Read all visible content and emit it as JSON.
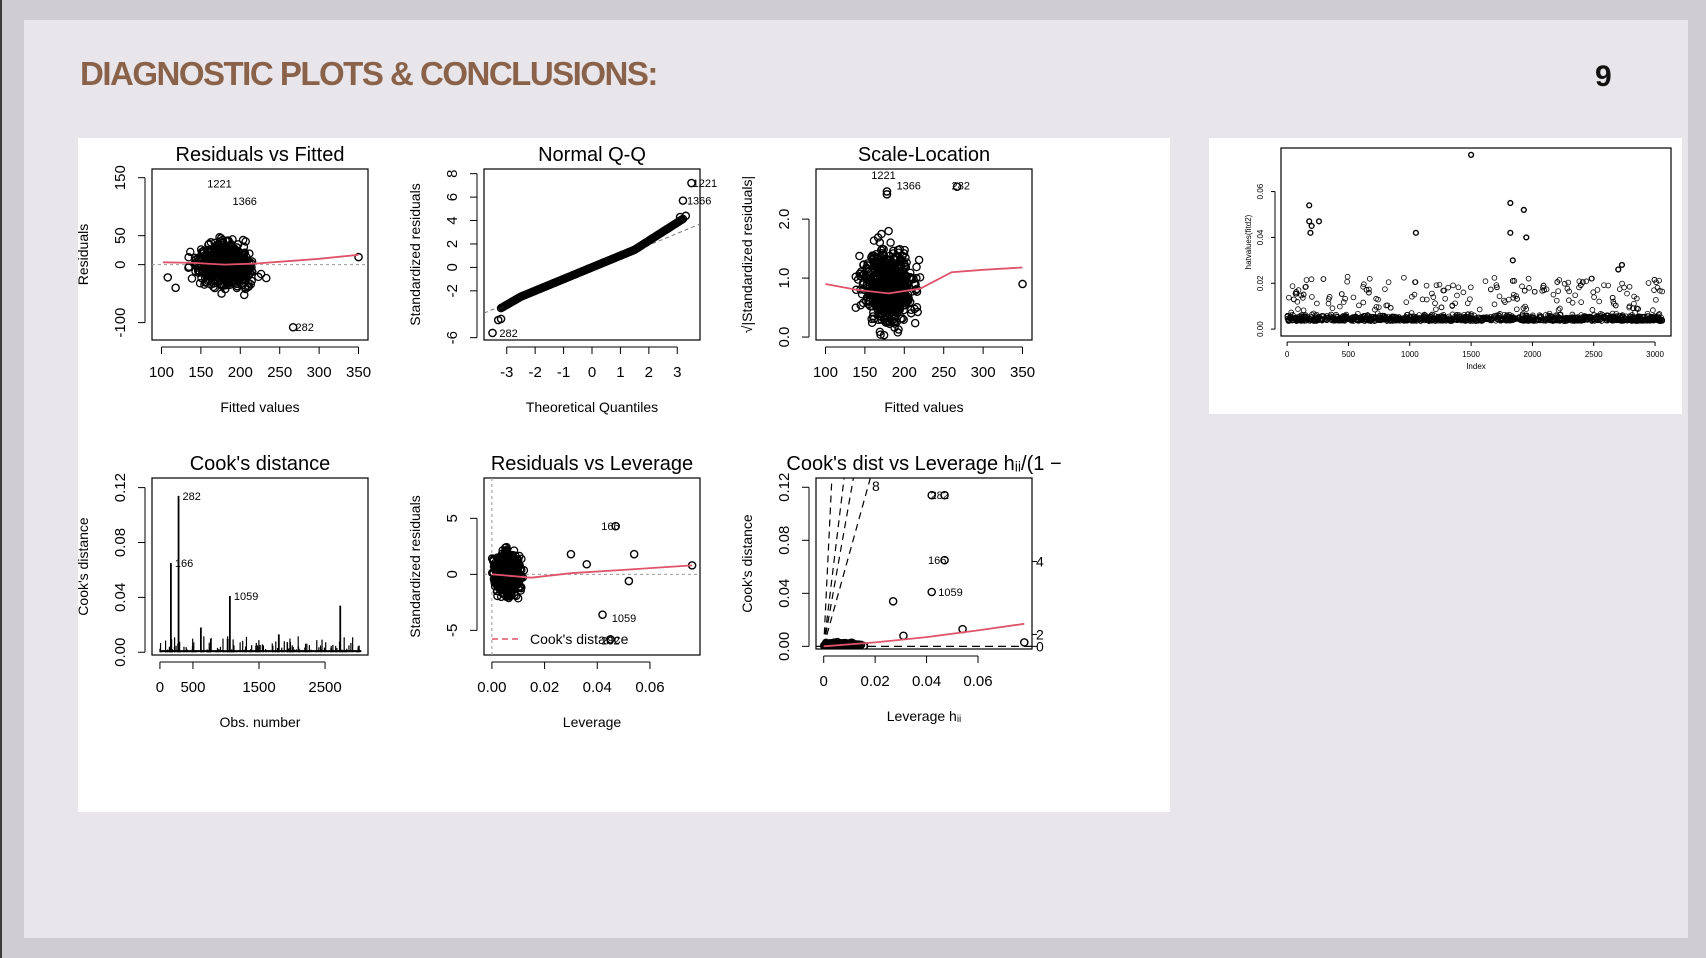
{
  "slide": {
    "title": "DIAGNOSTIC PLOTS & CONCLUSIONS:",
    "page_number": "9"
  },
  "colors": {
    "title": "#8a624a",
    "smoother": "#df536b",
    "points": "#000000"
  },
  "chart_data": [
    {
      "id": "resid-fitted",
      "type": "scatter",
      "title": "Residuals vs Fitted",
      "xlabel": "Fitted values",
      "ylabel": "Residuals",
      "xlim": [
        88,
        362
      ],
      "ylim": [
        -130,
        165
      ],
      "xticks": [
        "100",
        "150",
        "200",
        "250",
        "300",
        "350"
      ],
      "xtick_values": [
        100,
        150,
        200,
        250,
        300,
        350
      ],
      "yticks": [
        "-100",
        "0",
        "50",
        "150"
      ],
      "ytick_values": [
        -100,
        0,
        50,
        150
      ],
      "cloud": {
        "x_center": 180,
        "x_spread": 38,
        "y_spread": 28
      },
      "points": [
        {
          "x": 350,
          "y": 13
        },
        {
          "x": 267,
          "y": -108
        },
        {
          "x": 118,
          "y": -40
        },
        {
          "x": 108,
          "y": -22
        }
      ],
      "labels": [
        {
          "x": 153,
          "y": 140,
          "text": "1221"
        },
        {
          "x": 185,
          "y": 110,
          "text": "1366"
        },
        {
          "x": 265,
          "y": -108,
          "text": "282"
        }
      ],
      "smoother": [
        [
          102,
          4
        ],
        [
          140,
          3
        ],
        [
          180,
          0
        ],
        [
          220,
          2
        ],
        [
          260,
          6
        ],
        [
          300,
          10
        ],
        [
          350,
          17
        ]
      ],
      "reference_y": 0
    },
    {
      "id": "normal-qq",
      "type": "scatter",
      "title": "Normal Q-Q",
      "xlabel": "Theoretical Quantiles",
      "ylabel": "Standardized residuals",
      "xlim": [
        -3.8,
        3.8
      ],
      "ylim": [
        -6.2,
        8.4
      ],
      "xticks": [
        "-3",
        "-2",
        "-1",
        "0",
        "1",
        "2",
        "3"
      ],
      "xtick_values": [
        -3,
        -2,
        -1,
        0,
        1,
        2,
        3
      ],
      "yticks": [
        "-6",
        "-2",
        "0",
        "2",
        "4",
        "6",
        "8"
      ],
      "ytick_values": [
        -6,
        -2,
        0,
        2,
        4,
        6,
        8
      ],
      "points": [
        {
          "x": -3.5,
          "y": -5.6
        },
        {
          "x": -3.3,
          "y": -4.5
        },
        {
          "x": -3.2,
          "y": -4.4
        },
        {
          "x": 3.1,
          "y": 4.3
        },
        {
          "x": 3.3,
          "y": 4.4
        },
        {
          "x": 3.2,
          "y": 5.7
        },
        {
          "x": 3.5,
          "y": 7.2
        }
      ],
      "labels": [
        {
          "x": -3.4,
          "y": -5.6,
          "text": "282"
        },
        {
          "x": 3.2,
          "y": 5.7,
          "text": "1366"
        },
        {
          "x": 3.4,
          "y": 7.2,
          "text": "1221"
        }
      ],
      "reference_line": {
        "slope": 1.0,
        "intercept": -0.1
      }
    },
    {
      "id": "scale-location",
      "type": "scatter",
      "title": "Scale-Location",
      "xlabel": "Fitted values",
      "ylabel": "√|Standardized residuals|",
      "xlim": [
        88,
        362
      ],
      "ylim": [
        -0.05,
        2.85
      ],
      "xticks": [
        "100",
        "150",
        "200",
        "250",
        "300",
        "350"
      ],
      "xtick_values": [
        100,
        150,
        200,
        250,
        300,
        350
      ],
      "yticks": [
        "0.0",
        "1.0",
        "2.0"
      ],
      "ytick_values": [
        0,
        1,
        2
      ],
      "cloud": {
        "x_center": 180,
        "x_spread": 38,
        "y_spread": 0.5
      },
      "points": [
        {
          "x": 350,
          "y": 0.9
        },
        {
          "x": 267,
          "y": 2.55
        },
        {
          "x": 178,
          "y": 2.42
        },
        {
          "x": 178,
          "y": 2.47
        }
      ],
      "labels": [
        {
          "x": 153,
          "y": 2.75,
          "text": "1221"
        },
        {
          "x": 185,
          "y": 2.57,
          "text": "1366"
        },
        {
          "x": 255,
          "y": 2.57,
          "text": "282"
        }
      ],
      "smoother": [
        [
          100,
          0.9
        ],
        [
          140,
          0.8
        ],
        [
          180,
          0.74
        ],
        [
          220,
          0.82
        ],
        [
          260,
          1.1
        ],
        [
          300,
          1.14
        ],
        [
          350,
          1.18
        ]
      ]
    },
    {
      "id": "cooks-distance",
      "type": "bar",
      "title": "Cook's distance",
      "xlabel": "Obs. number",
      "ylabel": "Cook's distance",
      "xlim": [
        -120,
        3150
      ],
      "ylim": [
        -0.002,
        0.127
      ],
      "xticks": [
        "0",
        "500",
        "1500",
        "2500"
      ],
      "xtick_values": [
        0,
        500,
        1500,
        2500
      ],
      "yticks": [
        "0.00",
        "0.04",
        "0.08",
        "0.12"
      ],
      "ytick_values": [
        0,
        0.04,
        0.08,
        0.12
      ],
      "spikes": [
        {
          "x": 166,
          "y": 0.065
        },
        {
          "x": 282,
          "y": 0.114
        },
        {
          "x": 1059,
          "y": 0.041
        },
        {
          "x": 2730,
          "y": 0.034
        },
        {
          "x": 620,
          "y": 0.018
        },
        {
          "x": 1800,
          "y": 0.013
        }
      ],
      "labels": [
        {
          "x": 166,
          "y": 0.065,
          "text": "166"
        },
        {
          "x": 282,
          "y": 0.114,
          "text": "282"
        },
        {
          "x": 1059,
          "y": 0.041,
          "text": "1059"
        }
      ]
    },
    {
      "id": "resid-leverage",
      "type": "scatter",
      "title": "Residuals vs Leverage",
      "xlabel": "Leverage",
      "ylabel": "Standardized residuals",
      "xlim": [
        -0.003,
        0.079
      ],
      "ylim": [
        -7.2,
        8.6
      ],
      "xticks": [
        "0.00",
        "0.02",
        "0.04",
        "0.06"
      ],
      "xtick_values": [
        0,
        0.02,
        0.04,
        0.06
      ],
      "yticks": [
        "-5",
        "0",
        "5"
      ],
      "ytick_values": [
        -5,
        0,
        5
      ],
      "cloud": {
        "x_center": 0.006,
        "x_spread": 0.003,
        "y_spread": 1.5
      },
      "points": [
        {
          "x": 0.076,
          "y": 0.8
        },
        {
          "x": 0.047,
          "y": 4.3
        },
        {
          "x": 0.054,
          "y": 1.8
        },
        {
          "x": 0.042,
          "y": -3.6
        },
        {
          "x": 0.045,
          "y": -5.8
        },
        {
          "x": 0.052,
          "y": -0.6
        },
        {
          "x": 0.03,
          "y": 1.8
        },
        {
          "x": 0.036,
          "y": 0.9
        }
      ],
      "labels": [
        {
          "x": 0.04,
          "y": 4.3,
          "text": "166"
        },
        {
          "x": 0.044,
          "y": -3.9,
          "text": "1059"
        },
        {
          "x": 0.04,
          "y": -5.9,
          "text": "282"
        }
      ],
      "smoother": [
        [
          0.0,
          0.0
        ],
        [
          0.015,
          -0.3
        ],
        [
          0.03,
          0.1
        ],
        [
          0.05,
          0.4
        ],
        [
          0.076,
          0.8
        ]
      ],
      "legend": {
        "label": "Cook's distance"
      }
    },
    {
      "id": "cooks-leverage",
      "type": "scatter",
      "title": "Cook's dist vs Leverage  hᵢᵢ/(1 −",
      "xlabel": "Leverage  hᵢᵢ",
      "ylabel": "Cook's distance",
      "xlim": [
        -0.003,
        0.081
      ],
      "ylim": [
        -0.002,
        0.127
      ],
      "xticks": [
        "0",
        "0.02",
        "0.04",
        "0.06"
      ],
      "xtick_values": [
        0,
        0.02,
        0.04,
        0.06
      ],
      "yticks": [
        "0.00",
        "0.04",
        "0.08",
        "0.12"
      ],
      "ytick_values": [
        0,
        0.04,
        0.08,
        0.12
      ],
      "right_ticks": [
        "0",
        "2",
        "4"
      ],
      "right_tick_values": [
        0,
        0.009,
        0.064
      ],
      "contour_labels": [
        "8"
      ],
      "cloud": {
        "x_center": 0.012,
        "x_spread": 0.008,
        "y_spread": 0.004
      },
      "points": [
        {
          "x": 0.047,
          "y": 0.114
        },
        {
          "x": 0.042,
          "y": 0.114
        },
        {
          "x": 0.047,
          "y": 0.065
        },
        {
          "x": 0.042,
          "y": 0.041
        },
        {
          "x": 0.027,
          "y": 0.034
        },
        {
          "x": 0.054,
          "y": 0.013
        },
        {
          "x": 0.078,
          "y": 0.003
        },
        {
          "x": 0.031,
          "y": 0.008
        }
      ],
      "labels": [
        {
          "x": 0.04,
          "y": 0.114,
          "text": "282"
        },
        {
          "x": 0.039,
          "y": 0.065,
          "text": "166"
        },
        {
          "x": 0.043,
          "y": 0.041,
          "text": "1059"
        }
      ],
      "smoother": [
        [
          0.0,
          0.0
        ],
        [
          0.02,
          0.003
        ],
        [
          0.04,
          0.007
        ],
        [
          0.06,
          0.012
        ],
        [
          0.078,
          0.017
        ]
      ],
      "dashed_lines": [
        [
          0.0027,
          1
        ],
        [
          0.006,
          1
        ],
        [
          0.0083,
          1
        ],
        [
          0.012,
          1
        ]
      ]
    },
    {
      "id": "hatvalues",
      "type": "scatter",
      "title": "",
      "xlabel": "Index",
      "ylabel": "hatvalues(fitd2)",
      "xlim": [
        -50,
        3130
      ],
      "ylim": [
        -0.003,
        0.079
      ],
      "xticks": [
        "0",
        "500",
        "1000",
        "1500",
        "2000",
        "2500",
        "3000"
      ],
      "xtick_values": [
        0,
        500,
        1000,
        1500,
        2000,
        2500,
        3000
      ],
      "yticks": [
        "0.00",
        "0.02",
        "0.04",
        "0.06"
      ],
      "ytick_values": [
        0,
        0.02,
        0.04,
        0.06
      ],
      "points": [
        {
          "x": 1500,
          "y": 0.076
        },
        {
          "x": 180,
          "y": 0.054
        },
        {
          "x": 180,
          "y": 0.047
        },
        {
          "x": 200,
          "y": 0.045
        },
        {
          "x": 260,
          "y": 0.047
        },
        {
          "x": 190,
          "y": 0.042
        },
        {
          "x": 1050,
          "y": 0.042
        },
        {
          "x": 1820,
          "y": 0.055
        },
        {
          "x": 1930,
          "y": 0.052
        },
        {
          "x": 1820,
          "y": 0.042
        },
        {
          "x": 1950,
          "y": 0.04
        },
        {
          "x": 1840,
          "y": 0.03
        },
        {
          "x": 2730,
          "y": 0.028
        },
        {
          "x": 2700,
          "y": 0.026
        }
      ]
    }
  ]
}
